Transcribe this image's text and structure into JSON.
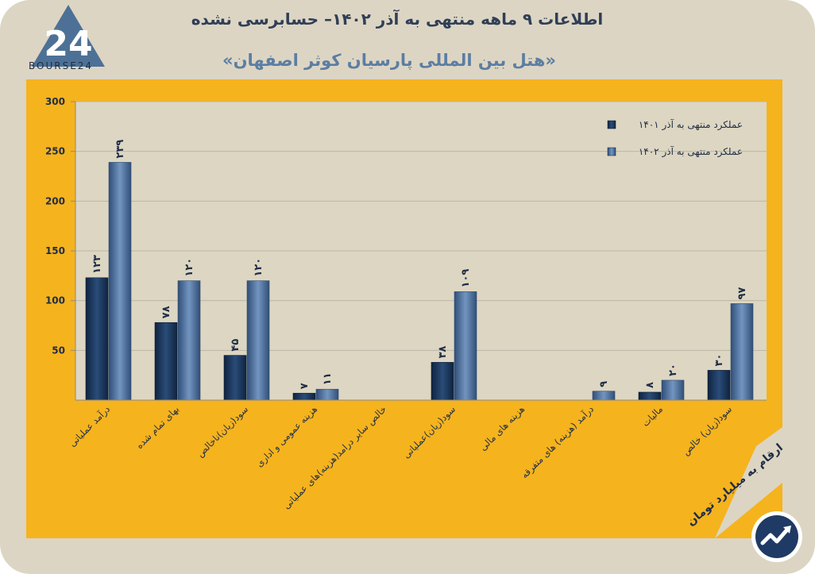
{
  "header": {
    "title": "اطلاعات ۹ ماهه منتهی به آذر ۱۴۰۲– حسابرسی نشده",
    "subtitle": "«هتل بین المللی پارسیان کوثر اصفهان»",
    "brand": "BOURSE24",
    "logo_mark": "24"
  },
  "note": "ارقام به میلیارد تومان",
  "colors": {
    "frame": "#ddd5c3",
    "panel": "#f5b31e",
    "plot": "#ddd6c2",
    "series_1401": "#1d3a5e",
    "series_1402": "#5377a3",
    "grid": "#bcb6a8"
  },
  "icons": {
    "badge": "trend-up-icon",
    "logo": "bourse24-logo-icon"
  },
  "chart_data": {
    "type": "bar",
    "categories": [
      "درآمد عملیاتی",
      "بهای تمام شده",
      "سود(زیان)ناخالص",
      "هزینه عمومی و اداری",
      "خالص سایر درامد(هزینه)های عملیاتی",
      "سود(زیان)عملیاتی",
      "هزینه های مالی",
      "درآمد (هزینه) های متفرقه",
      "مالیات",
      "سود(زیان) خالص"
    ],
    "series": [
      {
        "name": "عملکرد منتهی به آذر ۱۴۰۱",
        "values": [
          123,
          78,
          45,
          7,
          0,
          38,
          0,
          0,
          8,
          30
        ],
        "labels": [
          "۱۲۳",
          "۷۸",
          "۴۵",
          "۷",
          "",
          "۳۸",
          "",
          "",
          "۸",
          "۳۰"
        ]
      },
      {
        "name": "عملکرد منتهی به آذر ۱۴۰۲",
        "values": [
          239,
          120,
          120,
          11,
          0,
          109,
          0,
          9,
          20,
          97
        ],
        "labels": [
          "۲۳۹",
          "۱۲۰",
          "۱۲۰",
          "۱۱",
          "",
          "۱۰۹",
          "",
          "۹",
          "۲۰",
          "۹۷"
        ]
      }
    ],
    "yticks": [
      "50",
      "100",
      "150",
      "200",
      "250",
      "300"
    ],
    "ylim": [
      0,
      300
    ],
    "grid": true,
    "legend": "top-right",
    "xlabel": "",
    "ylabel": ""
  }
}
